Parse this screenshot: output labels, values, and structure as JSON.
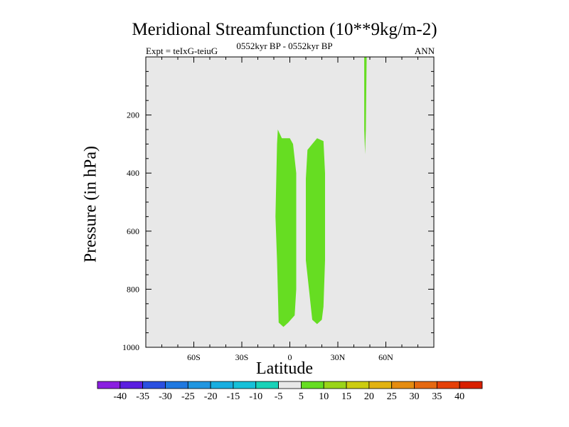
{
  "chart_data": {
    "type": "contour",
    "title": "Meridional Streamfunction (10**9kg/m-2)",
    "subtitle_left": "Expt = teIxG-teiuG",
    "subtitle_center": "0552kyr BP - 0552kyr BP",
    "subtitle_right": "ANN",
    "xlabel": "Latitude",
    "ylabel": "Pressure (in hPa)",
    "xlim": [
      -90,
      90
    ],
    "ylim": [
      1000,
      0
    ],
    "x_ticks": [
      {
        "value": -60,
        "label": "60S"
      },
      {
        "value": -30,
        "label": "30S"
      },
      {
        "value": 0,
        "label": "0"
      },
      {
        "value": 30,
        "label": "30N"
      },
      {
        "value": 60,
        "label": "60N"
      }
    ],
    "y_ticks": [
      {
        "value": 200,
        "label": "200"
      },
      {
        "value": 400,
        "label": "400"
      },
      {
        "value": 600,
        "label": "600"
      },
      {
        "value": 800,
        "label": "800"
      },
      {
        "value": 1000,
        "label": "1000"
      }
    ],
    "background_color": "#e8e8e8",
    "contour_regions": [
      {
        "name": "cell-1",
        "level": "5 to 10",
        "color": "#66dd22",
        "outline": [
          [
            -7.5,
            250
          ],
          [
            -5,
            280
          ],
          [
            0,
            280
          ],
          [
            2,
            300
          ],
          [
            4,
            400
          ],
          [
            4,
            800
          ],
          [
            3,
            890
          ],
          [
            -1,
            915
          ],
          [
            -4,
            930
          ],
          [
            -7,
            915
          ],
          [
            -8,
            700
          ],
          [
            -9,
            550
          ],
          [
            -8,
            300
          ]
        ]
      },
      {
        "name": "cell-2",
        "level": "5 to 10",
        "color": "#66dd22",
        "outline": [
          [
            17,
            280
          ],
          [
            21,
            290
          ],
          [
            22,
            400
          ],
          [
            22,
            700
          ],
          [
            21,
            860
          ],
          [
            20,
            905
          ],
          [
            17,
            920
          ],
          [
            14,
            905
          ],
          [
            10,
            700
          ],
          [
            10,
            420
          ],
          [
            11,
            320
          ],
          [
            14,
            300
          ]
        ]
      },
      {
        "name": "cell-3",
        "level": "5 to 10",
        "color": "#66dd22",
        "outline": [
          [
            46.5,
            0
          ],
          [
            48,
            0
          ],
          [
            47.5,
            250
          ],
          [
            47,
            335
          ],
          [
            46.5,
            250
          ]
        ]
      }
    ],
    "colorbar": {
      "labels": [
        "-40",
        "-35",
        "-30",
        "-25",
        "-20",
        "-15",
        "-10",
        "-5",
        "5",
        "10",
        "15",
        "20",
        "25",
        "30",
        "35",
        "40"
      ],
      "colors": [
        "#8a1fe0",
        "#5a1ee0",
        "#2a4fe0",
        "#1f78e0",
        "#2196e0",
        "#18aee0",
        "#16c0d8",
        "#18d2b8",
        "#e8e8e8",
        "#66dd22",
        "#9ad418",
        "#cccc10",
        "#e2b210",
        "#e58c10",
        "#e56810",
        "#e54008",
        "#d82000"
      ]
    }
  }
}
